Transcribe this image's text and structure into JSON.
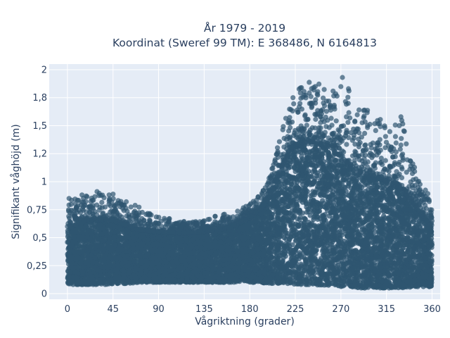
{
  "chart_data": {
    "type": "scatter",
    "title_line1": "År 1979 - 2019",
    "title_line2": "Koordinat (Sweref 99 TM): E 368486, N 6164813",
    "xlabel": "Vågriktning (grader)",
    "ylabel": "Signifikant våghöjd (m)",
    "xlim": [
      -18,
      368
    ],
    "ylim": [
      -0.05,
      2.05
    ],
    "xticks": [
      0,
      45,
      90,
      135,
      180,
      225,
      270,
      315,
      360
    ],
    "xtick_labels": [
      "0",
      "45",
      "90",
      "135",
      "180",
      "225",
      "270",
      "315",
      "360"
    ],
    "yticks": [
      0,
      0.25,
      0.5,
      0.75,
      1,
      1.25,
      1.5,
      1.75,
      2
    ],
    "ytick_labels": [
      "0",
      "0,25",
      "0,5",
      "0,75",
      "1",
      "1,2",
      "1,5",
      "1,8",
      "2"
    ],
    "grid": true,
    "marker_color": "#2f5670",
    "plot_background": "#e5ecf6",
    "envelope": {
      "direction": [
        0,
        10,
        20,
        30,
        40,
        50,
        60,
        70,
        80,
        90,
        100,
        110,
        120,
        130,
        140,
        150,
        160,
        170,
        180,
        190,
        200,
        210,
        220,
        230,
        240,
        250,
        260,
        270,
        280,
        290,
        300,
        310,
        320,
        330,
        340,
        350,
        360
      ],
      "min_height": [
        0.08,
        0.08,
        0.08,
        0.08,
        0.08,
        0.09,
        0.09,
        0.1,
        0.1,
        0.1,
        0.1,
        0.1,
        0.1,
        0.1,
        0.1,
        0.1,
        0.1,
        0.1,
        0.1,
        0.1,
        0.09,
        0.09,
        0.08,
        0.08,
        0.08,
        0.07,
        0.07,
        0.06,
        0.06,
        0.05,
        0.05,
        0.05,
        0.05,
        0.05,
        0.06,
        0.06,
        0.06
      ],
      "dense_max_height": [
        0.58,
        0.62,
        0.66,
        0.66,
        0.66,
        0.64,
        0.6,
        0.57,
        0.56,
        0.55,
        0.55,
        0.54,
        0.54,
        0.55,
        0.56,
        0.57,
        0.59,
        0.63,
        0.68,
        0.75,
        0.87,
        1.1,
        1.28,
        1.34,
        1.36,
        1.34,
        1.3,
        1.22,
        1.14,
        1.08,
        1.05,
        1.02,
        0.98,
        0.92,
        0.83,
        0.7,
        0.6
      ],
      "sparse_max_height": [
        0.85,
        0.88,
        0.9,
        0.92,
        0.9,
        0.88,
        0.82,
        0.78,
        0.74,
        0.7,
        0.68,
        0.66,
        0.64,
        0.66,
        0.68,
        0.7,
        0.72,
        0.76,
        0.8,
        0.88,
        1.05,
        1.42,
        1.7,
        1.9,
        1.92,
        1.87,
        1.84,
        1.96,
        1.8,
        1.7,
        1.6,
        1.58,
        1.55,
        1.6,
        1.2,
        0.97,
        0.85
      ]
    }
  }
}
